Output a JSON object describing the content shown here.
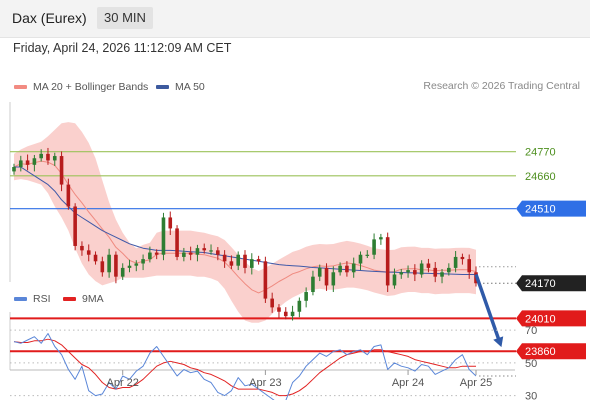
{
  "header": {
    "title": "Dax (Eurex)",
    "interval": "30 MIN"
  },
  "timestamp": "Friday, April 24, 2026 11:12:09 AM CET",
  "credit": "Research © 2026 Trading Central",
  "colors": {
    "candle_up": "#2e7d32",
    "candle_down": "#b71c1c",
    "bb_fill": "#f9c8c4",
    "ma20": "#ef8a80",
    "ma50": "#3f59a8",
    "green_level": "#9cc25a",
    "blue_level": "#2f6fe6",
    "red_level": "#e11b1b",
    "price_box": "#222222",
    "rsi": "#5a86d8",
    "rsi_ma": "#e22222",
    "arrow": "#2f5aa8"
  },
  "chart_data": [
    {
      "type": "candlestick",
      "title": "Dax (Eurex) 30 MIN",
      "legend": [
        {
          "name": "MA 20 + Bollinger Bands",
          "color": "#f28b82"
        },
        {
          "name": "MA 50",
          "color": "#3d5a9e"
        }
      ],
      "ylim": [
        23820,
        24960
      ],
      "x_tick_labels": [
        {
          "label": "Apr 22",
          "index": 16
        },
        {
          "label": "Apr 23",
          "index": 37
        },
        {
          "label": "Apr 24",
          "index": 58
        },
        {
          "label": "Apr 25",
          "index": 68
        }
      ],
      "levels": [
        {
          "value": 24770,
          "label": "24770",
          "kind": "resistance"
        },
        {
          "value": 24660,
          "label": "24660",
          "kind": "resistance"
        },
        {
          "value": 24510,
          "label": "24510",
          "kind": "pivot"
        },
        {
          "value": 24010,
          "label": "24010",
          "kind": "support"
        },
        {
          "value": 23860,
          "label": "23860",
          "kind": "support"
        }
      ],
      "last_price": {
        "value": 24170,
        "label": "24170"
      },
      "forecast_arrow": {
        "from": [
          68,
          24210
        ],
        "to": [
          71.5,
          23900
        ]
      },
      "close": [
        24700,
        24730,
        24710,
        24740,
        24760,
        24730,
        24750,
        24620,
        24520,
        24340,
        24320,
        24300,
        24270,
        24220,
        24300,
        24200,
        24240,
        24250,
        24260,
        24280,
        24310,
        24300,
        24470,
        24420,
        24290,
        24310,
        24300,
        24330,
        24320,
        24320,
        24300,
        24270,
        24250,
        24300,
        24240,
        24280,
        24270,
        24100,
        24060,
        24040,
        24020,
        24040,
        24090,
        24130,
        24200,
        24240,
        24160,
        24220,
        24250,
        24220,
        24260,
        24300,
        24300,
        24370,
        24380,
        24160,
        24210,
        24220,
        24230,
        24210,
        24260,
        24240,
        24200,
        24220,
        24240,
        24290,
        24280,
        24220,
        24170
      ],
      "ma20": [
        24700,
        24715,
        24712,
        24720,
        24727,
        24722,
        24707,
        24670,
        24619,
        24575,
        24537,
        24495,
        24457,
        24418,
        24380,
        24334,
        24306,
        24274,
        24262,
        24270,
        24277,
        24302,
        24307,
        24307,
        24307,
        24307,
        24307,
        24303,
        24300,
        24292,
        24284,
        24267,
        24235,
        24200,
        24168,
        24140,
        24126,
        24140,
        24158,
        24178,
        24195,
        24213,
        24223,
        24236,
        24245,
        24249,
        24247,
        24249,
        24257,
        24263,
        24258,
        24251,
        24241,
        24230,
        24225,
        24221,
        24223,
        24234,
        24236,
        24237,
        24231,
        24231,
        24227,
        24229,
        24229,
        24231,
        24232,
        24231,
        24223
      ],
      "bb_upper": [
        24760,
        24780,
        24795,
        24805,
        24815,
        24840,
        24870,
        24900,
        24905,
        24900,
        24860,
        24810,
        24740,
        24640,
        24540,
        24460,
        24400,
        24355,
        24330,
        24345,
        24355,
        24400,
        24410,
        24410,
        24410,
        24410,
        24410,
        24405,
        24400,
        24392,
        24384,
        24367,
        24335,
        24300,
        24268,
        24240,
        24226,
        24240,
        24258,
        24278,
        24295,
        24313,
        24323,
        24336,
        24345,
        24349,
        24347,
        24349,
        24357,
        24363,
        24358,
        24351,
        24341,
        24330,
        24325,
        24321,
        24323,
        24334,
        24336,
        24337,
        24331,
        24331,
        24327,
        24329,
        24329,
        24331,
        24332,
        24331,
        24323
      ],
      "bb_lower": [
        24640,
        24645,
        24640,
        24630,
        24620,
        24580,
        24520,
        24470,
        24410,
        24330,
        24260,
        24210,
        24180,
        24160,
        24170,
        24180,
        24195,
        24195,
        24195,
        24195,
        24200,
        24205,
        24205,
        24205,
        24205,
        24205,
        24205,
        24200,
        24200,
        24192,
        24180,
        24145,
        24090,
        24040,
        24000,
        23990,
        23990,
        24000,
        24030,
        24060,
        24085,
        24105,
        24120,
        24135,
        24140,
        24145,
        24140,
        24140,
        24145,
        24150,
        24150,
        24145,
        24138,
        24128,
        24120,
        24112,
        24115,
        24125,
        24130,
        24130,
        24125,
        24125,
        24120,
        24122,
        24122,
        24125,
        24125,
        24125,
        24120
      ],
      "ma50": [
        24700,
        24700,
        24680,
        24660,
        24640,
        24620,
        24590,
        24550,
        24520,
        24490,
        24470,
        24450,
        24430,
        24410,
        24395,
        24380,
        24365,
        24350,
        24340,
        24330,
        24325,
        24320,
        24320,
        24320,
        24318,
        24316,
        24314,
        24312,
        24310,
        24305,
        24300,
        24295,
        24290,
        24285,
        24280,
        24275,
        24270,
        24265,
        24260,
        24255,
        24252,
        24250,
        24248,
        24245,
        24242,
        24240,
        24238,
        24236,
        24234,
        24232,
        24230,
        24228,
        24226,
        24224,
        24222,
        24221,
        24220,
        24219,
        24218,
        24217,
        24216,
        24215,
        24214,
        24213,
        24212,
        24211,
        24210,
        24210,
        24210
      ]
    },
    {
      "type": "line",
      "title": "RSI",
      "legend": [
        {
          "name": "RSI",
          "color": "#5a86d8"
        },
        {
          "name": "9MA",
          "color": "#e22222"
        }
      ],
      "ylim": [
        20,
        75
      ],
      "y_ticks": [
        70,
        50,
        30
      ],
      "rsi": [
        63,
        62,
        64,
        66,
        62,
        68,
        60,
        55,
        46,
        40,
        48,
        33,
        30,
        31,
        38,
        34,
        42,
        40,
        45,
        48,
        56,
        60,
        54,
        48,
        42,
        46,
        44,
        45,
        40,
        38,
        32,
        30,
        33,
        41,
        36,
        37,
        34,
        31,
        28,
        25,
        27,
        38,
        42,
        48,
        52,
        56,
        54,
        57,
        58,
        55,
        57,
        58,
        55,
        60,
        61,
        46,
        50,
        48,
        47,
        45,
        49,
        48,
        43,
        45,
        47,
        52,
        55,
        46,
        42
      ],
      "rsi_ma": [
        63,
        62.5,
        62.5,
        63.5,
        63.5,
        64.5,
        63.5,
        61,
        57,
        53,
        49,
        47,
        43,
        38,
        35,
        34,
        35,
        35,
        37,
        40,
        44,
        48,
        50,
        51,
        50,
        49,
        47,
        46,
        44,
        43,
        41,
        39,
        36,
        34,
        34,
        34,
        34,
        33,
        32,
        30,
        30,
        31,
        33,
        36,
        40,
        44,
        47,
        50,
        53,
        55,
        56,
        57,
        57,
        58,
        58,
        57,
        56,
        55,
        54,
        52,
        51,
        50,
        49,
        48,
        47,
        47,
        48,
        48,
        48
      ]
    }
  ]
}
